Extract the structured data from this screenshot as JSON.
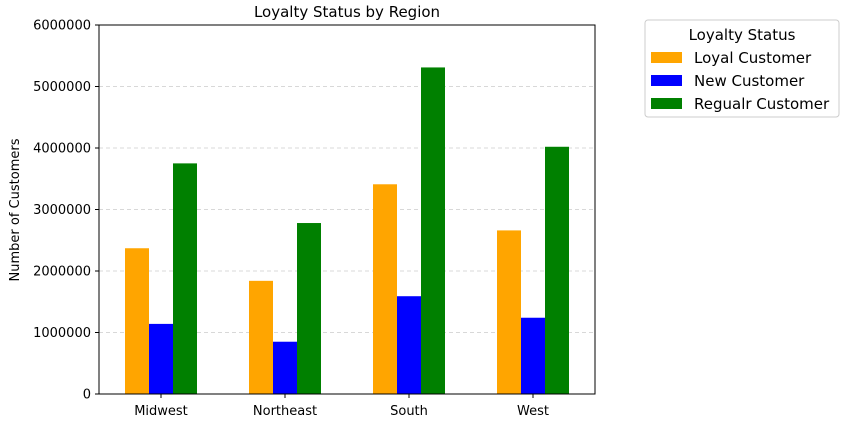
{
  "chart_data": {
    "type": "bar",
    "title": "Loyalty Status by Region",
    "xlabel": "",
    "ylabel": "Number of Customers",
    "categories": [
      "Midwest",
      "Northeast",
      "South",
      "West"
    ],
    "series": [
      {
        "name": "Loyal Customer",
        "color": "#ffa500",
        "values": [
          2370000,
          1840000,
          3410000,
          2660000
        ]
      },
      {
        "name": "New Customer",
        "color": "#0000ff",
        "values": [
          1140000,
          850000,
          1590000,
          1240000
        ]
      },
      {
        "name": "Regualr Customer",
        "color": "#008000",
        "values": [
          3750000,
          2780000,
          5310000,
          4020000
        ]
      }
    ],
    "ylim": [
      0,
      6000000
    ],
    "yticks": [
      0,
      1000000,
      2000000,
      3000000,
      4000000,
      5000000,
      6000000
    ],
    "ytick_labels": [
      "0",
      "1000000",
      "2000000",
      "3000000",
      "4000000",
      "5000000",
      "6000000"
    ],
    "grid": "y-dashed",
    "legend": {
      "title": "Loyalty Status",
      "placement": "outside-right-top"
    }
  }
}
